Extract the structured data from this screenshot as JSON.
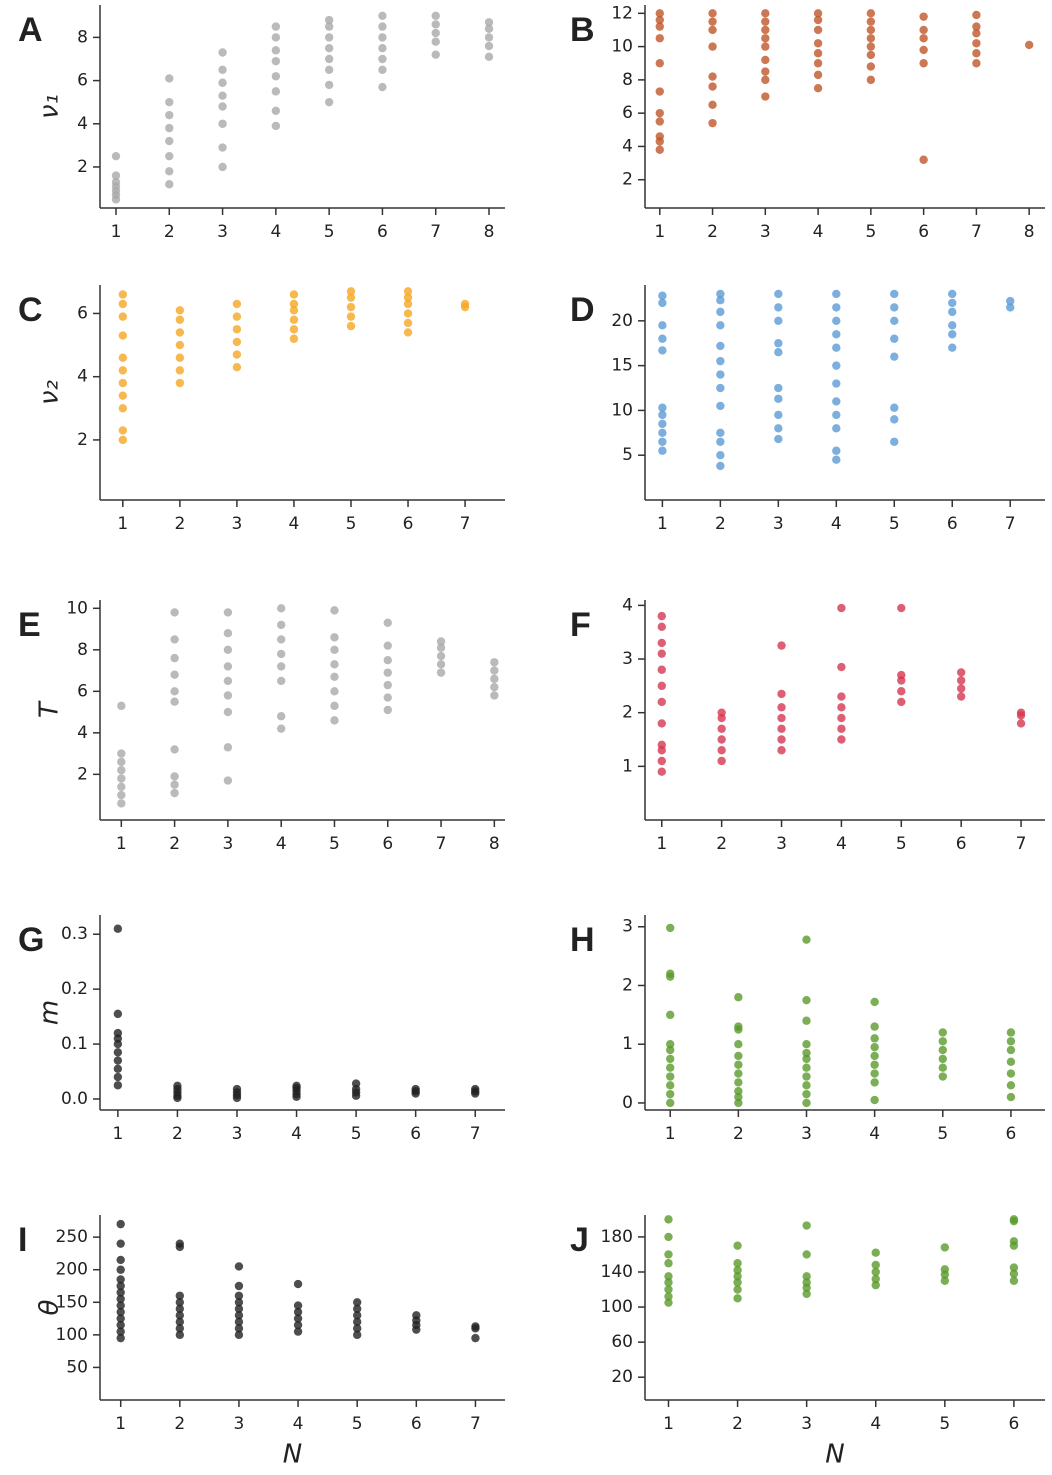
{
  "chart_data": [
    {
      "type": "scatter",
      "panel": "A",
      "ylabel": "ν₁",
      "color": "#a9a9a9",
      "xlim": [
        0.7,
        8.3
      ],
      "ylim": [
        0.1,
        9.5
      ],
      "xticks": [
        1,
        2,
        3,
        4,
        5,
        6,
        7,
        8
      ],
      "yticks": [
        2,
        4,
        6,
        8
      ],
      "x": [
        1,
        2,
        3,
        4,
        5,
        6,
        7,
        8
      ],
      "values": [
        [
          0.5,
          0.7,
          0.9,
          1.1,
          1.3,
          1.6,
          2.5
        ],
        [
          1.2,
          1.8,
          2.5,
          3.2,
          3.8,
          4.4,
          5.0,
          6.1
        ],
        [
          2.0,
          2.9,
          4.0,
          4.8,
          5.3,
          5.9,
          6.5,
          7.3
        ],
        [
          3.9,
          4.6,
          5.5,
          6.2,
          6.9,
          7.4,
          8.0,
          8.5
        ],
        [
          5.0,
          5.8,
          6.5,
          7.0,
          7.5,
          8.0,
          8.5,
          8.8
        ],
        [
          5.7,
          6.5,
          7.0,
          7.5,
          8.0,
          8.5,
          9.0
        ],
        [
          7.2,
          7.8,
          8.2,
          8.6,
          9.0
        ],
        [
          7.1,
          7.6,
          8.0,
          8.4,
          8.7
        ]
      ]
    },
    {
      "type": "scatter",
      "panel": "B",
      "color": "#c0562a",
      "xlim": [
        0.72,
        8.3
      ],
      "ylim": [
        0.3,
        12.5
      ],
      "xticks": [
        1,
        2,
        3,
        4,
        5,
        6,
        7,
        8
      ],
      "yticks": [
        2,
        4,
        6,
        8,
        10,
        12
      ],
      "x": [
        1,
        2,
        3,
        4,
        5,
        6,
        7,
        8
      ],
      "values": [
        [
          3.8,
          4.3,
          4.6,
          5.5,
          6.0,
          7.3,
          9.0,
          10.5,
          11.2,
          11.6,
          12.0
        ],
        [
          5.4,
          6.5,
          7.6,
          8.2,
          10.0,
          11.0,
          11.5,
          12.0
        ],
        [
          7.0,
          8.0,
          8.5,
          9.2,
          10.0,
          10.5,
          11.0,
          11.5,
          12.0
        ],
        [
          7.5,
          8.3,
          9.0,
          9.6,
          10.2,
          11.0,
          11.6,
          12.0
        ],
        [
          8.0,
          8.8,
          9.5,
          10.0,
          10.5,
          11.0,
          11.5,
          12.0
        ],
        [
          3.2,
          9.0,
          9.8,
          10.5,
          11.0,
          11.8
        ],
        [
          9.0,
          9.6,
          10.2,
          10.8,
          11.2,
          11.9
        ],
        [
          10.1
        ]
      ]
    },
    {
      "type": "scatter",
      "panel": "C",
      "ylabel": "ν₂",
      "color": "#f5a623",
      "xlim": [
        0.6,
        7.7
      ],
      "ylim": [
        0.1,
        6.9
      ],
      "xticks": [
        1,
        2,
        3,
        4,
        5,
        6,
        7
      ],
      "yticks": [
        2,
        4,
        6
      ],
      "x": [
        1,
        2,
        3,
        4,
        5,
        6,
        7
      ],
      "values": [
        [
          2.0,
          2.3,
          3.0,
          3.4,
          3.8,
          4.2,
          4.6,
          5.3,
          5.9,
          6.3,
          6.6
        ],
        [
          3.8,
          4.2,
          4.6,
          5.0,
          5.4,
          5.8,
          6.1
        ],
        [
          4.3,
          4.7,
          5.1,
          5.5,
          5.9,
          6.3
        ],
        [
          5.2,
          5.5,
          5.8,
          6.1,
          6.3,
          6.6
        ],
        [
          5.6,
          5.9,
          6.2,
          6.5,
          6.7
        ],
        [
          5.4,
          5.7,
          6.0,
          6.3,
          6.5,
          6.7
        ],
        [
          6.2,
          6.3
        ]
      ]
    },
    {
      "type": "scatter",
      "panel": "D",
      "color": "#5b9bd5",
      "xlim": [
        0.7,
        7.6
      ],
      "ylim": [
        0,
        24
      ],
      "xticks": [
        1,
        2,
        3,
        4,
        5,
        6,
        7
      ],
      "yticks": [
        5,
        10,
        15,
        20
      ],
      "x": [
        1,
        2,
        3,
        4,
        5,
        6,
        7
      ],
      "values": [
        [
          5.5,
          6.5,
          7.5,
          8.5,
          9.5,
          10.3,
          16.7,
          18,
          19.5,
          22,
          22.8
        ],
        [
          3.8,
          5,
          6.5,
          7.5,
          10.5,
          12.5,
          14,
          15.5,
          17.2,
          19.5,
          21,
          22.3,
          23
        ],
        [
          6.8,
          8,
          9.5,
          11.3,
          12.5,
          16.5,
          17.5,
          20,
          21.5,
          23
        ],
        [
          4.5,
          5.5,
          8,
          9.5,
          11,
          13,
          15,
          17,
          18.5,
          20,
          21.5,
          23
        ],
        [
          6.5,
          9,
          10.3,
          16,
          18,
          20,
          21.5,
          23
        ],
        [
          17,
          18.5,
          19.5,
          21,
          22,
          23
        ],
        [
          21.5,
          22.2
        ]
      ]
    },
    {
      "type": "scatter",
      "panel": "E",
      "ylabel": "T",
      "color": "#a9a9a9",
      "xlim": [
        0.6,
        8.2
      ],
      "ylim": [
        -0.2,
        10.4
      ],
      "xticks": [
        1,
        2,
        3,
        4,
        5,
        6,
        7,
        8
      ],
      "yticks": [
        2,
        4,
        6,
        8,
        10
      ],
      "x": [
        1,
        2,
        3,
        4,
        5,
        6,
        7,
        8
      ],
      "values": [
        [
          0.6,
          1.0,
          1.4,
          1.8,
          2.2,
          2.6,
          3.0,
          5.3
        ],
        [
          1.1,
          1.5,
          1.9,
          3.2,
          5.5,
          6.0,
          6.8,
          7.6,
          8.5,
          9.8
        ],
        [
          1.7,
          3.3,
          5.0,
          5.8,
          6.5,
          7.2,
          8.0,
          8.8,
          9.8
        ],
        [
          4.2,
          4.8,
          6.5,
          7.2,
          7.8,
          8.5,
          9.2,
          10.0
        ],
        [
          4.6,
          5.3,
          6.0,
          6.7,
          7.3,
          8.0,
          8.6,
          9.9
        ],
        [
          5.1,
          5.7,
          6.3,
          6.9,
          7.5,
          8.2,
          9.3
        ],
        [
          6.9,
          7.3,
          7.7,
          8.1,
          8.4
        ],
        [
          5.8,
          6.2,
          6.6,
          7.0,
          7.4
        ]
      ]
    },
    {
      "type": "scatter",
      "panel": "F",
      "color": "#d63650",
      "xlim": [
        0.72,
        7.4
      ],
      "ylim": [
        0,
        4.1
      ],
      "xticks": [
        1,
        2,
        3,
        4,
        5,
        6,
        7
      ],
      "yticks": [
        1,
        2,
        3,
        4
      ],
      "x": [
        1,
        2,
        3,
        4,
        5,
        6,
        7
      ],
      "values": [
        [
          0.9,
          1.1,
          1.3,
          1.4,
          1.8,
          2.2,
          2.5,
          2.8,
          3.1,
          3.3,
          3.6,
          3.8
        ],
        [
          1.1,
          1.3,
          1.5,
          1.7,
          1.9,
          2.0
        ],
        [
          1.3,
          1.5,
          1.7,
          1.9,
          2.1,
          2.35,
          3.25
        ],
        [
          1.5,
          1.7,
          1.9,
          2.1,
          2.3,
          2.85,
          3.95
        ],
        [
          2.2,
          2.4,
          2.6,
          2.7,
          3.95
        ],
        [
          2.3,
          2.45,
          2.6,
          2.75
        ],
        [
          1.8,
          1.95,
          2.0
        ]
      ]
    },
    {
      "type": "scatter",
      "panel": "G",
      "ylabel": "m",
      "color": "#222222",
      "xlim": [
        0.7,
        7.5
      ],
      "ylim": [
        -0.02,
        0.335
      ],
      "xticks": [
        1,
        2,
        3,
        4,
        5,
        6,
        7
      ],
      "yticks": [
        {
          "value": 0,
          "label": "0.0"
        },
        0.1,
        0.2,
        0.3
      ],
      "x": [
        1,
        2,
        3,
        4,
        5,
        6,
        7
      ],
      "values": [
        [
          0.025,
          0.04,
          0.055,
          0.07,
          0.085,
          0.1,
          0.11,
          0.12,
          0.155,
          0.31
        ],
        [
          0.002,
          0.006,
          0.012,
          0.018,
          0.024
        ],
        [
          0.002,
          0.007,
          0.012,
          0.018
        ],
        [
          0.004,
          0.009,
          0.015,
          0.02,
          0.024
        ],
        [
          0.006,
          0.012,
          0.018,
          0.028
        ],
        [
          0.01,
          0.014,
          0.018
        ],
        [
          0.01,
          0.014,
          0.018
        ]
      ]
    },
    {
      "type": "scatter",
      "panel": "H",
      "color": "#5a9a2a",
      "xlim": [
        0.63,
        6.5
      ],
      "ylim": [
        -0.12,
        3.2
      ],
      "xticks": [
        1,
        2,
        3,
        4,
        5,
        6
      ],
      "yticks": [
        0,
        1,
        2,
        3
      ],
      "x": [
        1,
        2,
        3,
        4,
        5,
        6
      ],
      "values": [
        [
          0,
          0.15,
          0.3,
          0.45,
          0.6,
          0.75,
          0.9,
          1.0,
          1.5,
          2.15,
          2.2,
          2.98
        ],
        [
          0,
          0.1,
          0.2,
          0.35,
          0.5,
          0.65,
          0.8,
          1.0,
          1.25,
          1.3,
          1.8
        ],
        [
          0,
          0.15,
          0.3,
          0.45,
          0.6,
          0.75,
          0.85,
          1.0,
          1.4,
          1.75,
          2.78
        ],
        [
          0.05,
          0.35,
          0.5,
          0.65,
          0.8,
          0.95,
          1.1,
          1.3,
          1.72
        ],
        [
          0.45,
          0.6,
          0.75,
          0.9,
          1.05,
          1.2
        ],
        [
          0.1,
          0.3,
          0.5,
          0.7,
          0.9,
          1.05,
          1.2
        ]
      ]
    },
    {
      "type": "scatter",
      "panel": "I",
      "ylabel": "θ",
      "xlabel": "N",
      "color": "#222222",
      "xlim": [
        0.65,
        7.5
      ],
      "ylim": [
        0,
        284
      ],
      "xticks": [
        1,
        2,
        3,
        4,
        5,
        6,
        7
      ],
      "yticks": [
        50,
        100,
        150,
        200,
        250
      ],
      "x": [
        1,
        2,
        3,
        4,
        5,
        6,
        7
      ],
      "values": [
        [
          95,
          105,
          115,
          125,
          135,
          145,
          155,
          165,
          175,
          185,
          200,
          215,
          240,
          270
        ],
        [
          100,
          110,
          120,
          130,
          140,
          150,
          160,
          235,
          240
        ],
        [
          100,
          110,
          120,
          130,
          140,
          150,
          160,
          175,
          205
        ],
        [
          105,
          115,
          125,
          135,
          145,
          178
        ],
        [
          100,
          110,
          120,
          130,
          140,
          150
        ],
        [
          108,
          115,
          122,
          130
        ],
        [
          95,
          110,
          113
        ]
      ]
    },
    {
      "type": "scatter",
      "panel": "J",
      "xlabel": "N",
      "color": "#5a9a2a",
      "xlim": [
        0.66,
        6.45
      ],
      "ylim": [
        -6,
        205
      ],
      "xticks": [
        1,
        2,
        3,
        4,
        5,
        6
      ],
      "yticks": [
        20,
        60,
        100,
        140,
        180
      ],
      "x": [
        1,
        2,
        3,
        4,
        5,
        6
      ],
      "values": [
        [
          105,
          112,
          120,
          128,
          135,
          150,
          160,
          180,
          200
        ],
        [
          110,
          120,
          128,
          135,
          142,
          150,
          170
        ],
        [
          115,
          122,
          128,
          135,
          160,
          193
        ],
        [
          125,
          132,
          140,
          148,
          162
        ],
        [
          130,
          137,
          143,
          168
        ],
        [
          130,
          138,
          145,
          170,
          175,
          198,
          200
        ]
      ]
    }
  ]
}
